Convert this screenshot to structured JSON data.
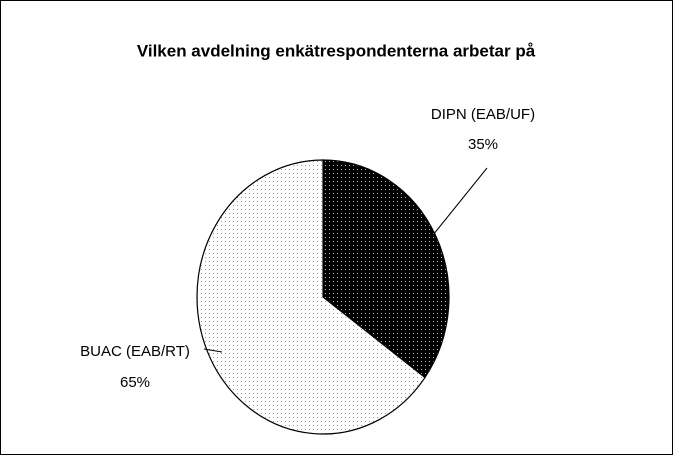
{
  "chart_data": {
    "type": "pie",
    "title": "Vilken avdelning enkätrespondenterna arbetar på",
    "categories": [
      "DIPN (EAB/UF)",
      "BUAC (EAB/RT)"
    ],
    "values": [
      35,
      65
    ],
    "value_labels": [
      "35%",
      "65%"
    ],
    "colors": [
      "#000000",
      "#ffffff"
    ]
  }
}
